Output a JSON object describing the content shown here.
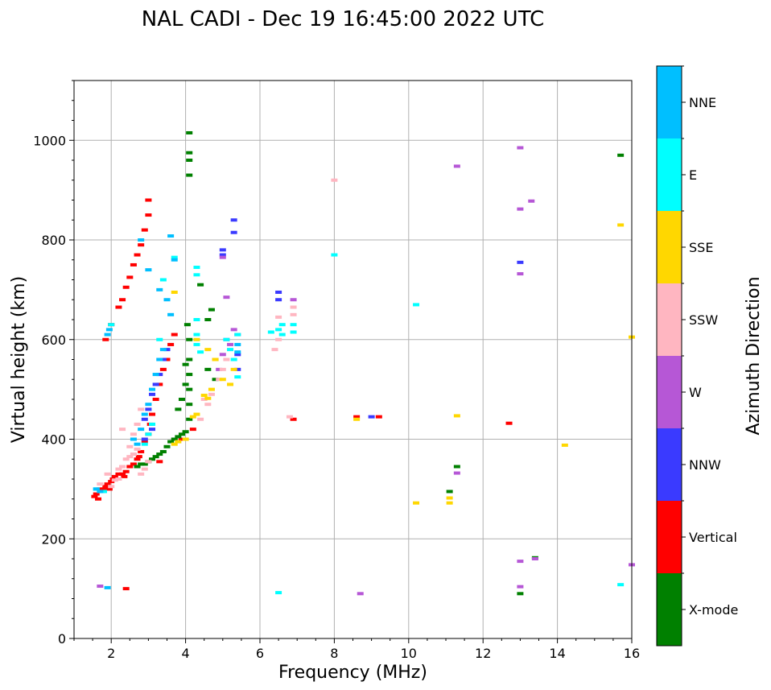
{
  "chart_data": {
    "type": "scatter",
    "title": "NAL CADI - Dec 19 16:45:00 2022 UTC",
    "xlabel": "Frequency (MHz)",
    "ylabel": "Virtual height (km)",
    "xlim": [
      1,
      16
    ],
    "ylim": [
      0,
      1120
    ],
    "xticks": [
      2,
      4,
      6,
      8,
      10,
      12,
      14,
      16
    ],
    "yticks": [
      0,
      200,
      400,
      600,
      800,
      1000
    ],
    "grid": true,
    "colorbar": {
      "title": "Azimuth Direction",
      "categories": [
        {
          "name": "X-mode",
          "color": "#008000"
        },
        {
          "name": "Vertical",
          "color": "#ff0000"
        },
        {
          "name": "NNW",
          "color": "#3a3aff"
        },
        {
          "name": "W",
          "color": "#b657d6"
        },
        {
          "name": "SSW",
          "color": "#ffb6c1"
        },
        {
          "name": "SSE",
          "color": "#ffd700"
        },
        {
          "name": "E",
          "color": "#00ffff"
        },
        {
          "name": "NNE",
          "color": "#00bfff"
        }
      ]
    },
    "series": [
      {
        "name": "Vertical",
        "points": [
          [
            1.55,
            285
          ],
          [
            1.6,
            290
          ],
          [
            1.65,
            280
          ],
          [
            1.7,
            300
          ],
          [
            1.75,
            295
          ],
          [
            1.8,
            300
          ],
          [
            1.85,
            305
          ],
          [
            1.9,
            310
          ],
          [
            1.95,
            300
          ],
          [
            2.0,
            315
          ],
          [
            2.05,
            320
          ],
          [
            2.1,
            325
          ],
          [
            2.2,
            330
          ],
          [
            2.3,
            330
          ],
          [
            2.4,
            335
          ],
          [
            2.5,
            345
          ],
          [
            2.6,
            350
          ],
          [
            2.7,
            360
          ],
          [
            2.8,
            375
          ],
          [
            2.9,
            395
          ],
          [
            3.0,
            410
          ],
          [
            3.05,
            430
          ],
          [
            3.1,
            450
          ],
          [
            3.2,
            480
          ],
          [
            3.3,
            510
          ],
          [
            3.4,
            540
          ],
          [
            3.5,
            560
          ],
          [
            3.6,
            590
          ],
          [
            3.7,
            610
          ],
          [
            1.85,
            600
          ],
          [
            2.0,
            630
          ],
          [
            2.2,
            665
          ],
          [
            2.3,
            680
          ],
          [
            2.4,
            705
          ],
          [
            2.5,
            725
          ],
          [
            2.6,
            750
          ],
          [
            2.7,
            770
          ],
          [
            2.8,
            790
          ],
          [
            2.9,
            820
          ],
          [
            3.0,
            850
          ],
          [
            3.0,
            880
          ],
          [
            6.9,
            440
          ],
          [
            8.6,
            445
          ],
          [
            9.2,
            445
          ],
          [
            12.7,
            432
          ],
          [
            2.4,
            100
          ],
          [
            3.9,
            400
          ],
          [
            4.2,
            420
          ],
          [
            3.3,
            355
          ],
          [
            2.75,
            365
          ],
          [
            2.35,
            325
          ]
        ]
      },
      {
        "name": "X-mode",
        "points": [
          [
            2.7,
            345
          ],
          [
            2.8,
            350
          ],
          [
            2.9,
            350
          ],
          [
            3.0,
            355
          ],
          [
            3.1,
            360
          ],
          [
            3.2,
            365
          ],
          [
            3.3,
            370
          ],
          [
            3.4,
            375
          ],
          [
            3.5,
            385
          ],
          [
            3.6,
            395
          ],
          [
            3.7,
            400
          ],
          [
            3.8,
            405
          ],
          [
            3.9,
            410
          ],
          [
            4.0,
            415
          ],
          [
            4.1,
            440
          ],
          [
            4.1,
            470
          ],
          [
            4.1,
            500
          ],
          [
            4.1,
            530
          ],
          [
            4.1,
            560
          ],
          [
            4.1,
            600
          ],
          [
            4.05,
            630
          ],
          [
            4.6,
            640
          ],
          [
            4.7,
            660
          ],
          [
            4.6,
            540
          ],
          [
            4.8,
            520
          ],
          [
            4.1,
            1015
          ],
          [
            4.1,
            975
          ],
          [
            4.1,
            960
          ],
          [
            4.1,
            930
          ],
          [
            4.4,
            710
          ],
          [
            3.8,
            460
          ],
          [
            3.9,
            480
          ],
          [
            4.0,
            510
          ],
          [
            4.0,
            550
          ],
          [
            11.1,
            295
          ],
          [
            11.3,
            345
          ],
          [
            13.0,
            90
          ],
          [
            13.4,
            162
          ],
          [
            15.7,
            970
          ]
        ]
      },
      {
        "name": "NNW",
        "points": [
          [
            2.9,
            440
          ],
          [
            3.0,
            460
          ],
          [
            3.1,
            490
          ],
          [
            3.2,
            510
          ],
          [
            3.3,
            530
          ],
          [
            3.4,
            560
          ],
          [
            3.5,
            580
          ],
          [
            5.0,
            780
          ],
          [
            5.0,
            770
          ],
          [
            5.3,
            840
          ],
          [
            5.3,
            815
          ],
          [
            5.4,
            570
          ],
          [
            6.5,
            695
          ],
          [
            6.5,
            680
          ],
          [
            9.0,
            445
          ],
          [
            13.0,
            755
          ],
          [
            5.4,
            540
          ],
          [
            2.9,
            400
          ],
          [
            3.1,
            420
          ]
        ]
      },
      {
        "name": "W",
        "points": [
          [
            5.1,
            600
          ],
          [
            5.3,
            620
          ],
          [
            5.4,
            610
          ],
          [
            5.2,
            590
          ],
          [
            5.0,
            570
          ],
          [
            4.8,
            560
          ],
          [
            4.9,
            540
          ],
          [
            5.1,
            685
          ],
          [
            5.0,
            765
          ],
          [
            6.9,
            680
          ],
          [
            11.3,
            948
          ],
          [
            13.0,
            985
          ],
          [
            13.3,
            878
          ],
          [
            13.0,
            862
          ],
          [
            13.0,
            732
          ],
          [
            13.0,
            155
          ],
          [
            13.4,
            160
          ],
          [
            13.0,
            104
          ],
          [
            11.3,
            332
          ],
          [
            8.7,
            90
          ],
          [
            16.0,
            148
          ],
          [
            1.7,
            105
          ]
        ]
      },
      {
        "name": "SSW",
        "points": [
          [
            2.2,
            340
          ],
          [
            2.3,
            345
          ],
          [
            2.4,
            360
          ],
          [
            2.5,
            365
          ],
          [
            2.6,
            370
          ],
          [
            2.7,
            380
          ],
          [
            2.8,
            330
          ],
          [
            2.9,
            340
          ],
          [
            3.0,
            355
          ],
          [
            2.0,
            305
          ],
          [
            2.1,
            318
          ],
          [
            2.2,
            320
          ],
          [
            2.5,
            385
          ],
          [
            2.6,
            410
          ],
          [
            2.7,
            430
          ],
          [
            2.8,
            460
          ],
          [
            4.4,
            440
          ],
          [
            4.5,
            480
          ],
          [
            4.6,
            470
          ],
          [
            4.7,
            490
          ],
          [
            4.9,
            520
          ],
          [
            5.0,
            540
          ],
          [
            5.1,
            560
          ],
          [
            6.4,
            580
          ],
          [
            6.5,
            600
          ],
          [
            6.5,
            645
          ],
          [
            6.9,
            665
          ],
          [
            6.9,
            650
          ],
          [
            6.8,
            445
          ],
          [
            8.0,
            920
          ],
          [
            1.7,
            310
          ],
          [
            1.9,
            330
          ],
          [
            2.3,
            420
          ]
        ]
      },
      {
        "name": "SSE",
        "points": [
          [
            3.7,
            390
          ],
          [
            3.8,
            395
          ],
          [
            4.0,
            400
          ],
          [
            4.2,
            445
          ],
          [
            4.3,
            450
          ],
          [
            4.5,
            488
          ],
          [
            4.6,
            482
          ],
          [
            4.7,
            500
          ],
          [
            4.6,
            580
          ],
          [
            4.8,
            560
          ],
          [
            5.0,
            520
          ],
          [
            5.2,
            510
          ],
          [
            5.3,
            540
          ],
          [
            3.7,
            695
          ],
          [
            10.2,
            272
          ],
          [
            11.1,
            272
          ],
          [
            11.1,
            282
          ],
          [
            11.3,
            447
          ],
          [
            8.6,
            440
          ],
          [
            14.2,
            388
          ],
          [
            15.7,
            830
          ],
          [
            16.0,
            605
          ],
          [
            4.3,
            600
          ]
        ]
      },
      {
        "name": "E",
        "points": [
          [
            2.0,
            630
          ],
          [
            3.3,
            600
          ],
          [
            3.4,
            720
          ],
          [
            3.7,
            765
          ],
          [
            4.3,
            745
          ],
          [
            4.3,
            730
          ],
          [
            4.3,
            640
          ],
          [
            4.3,
            610
          ],
          [
            4.3,
            590
          ],
          [
            4.4,
            575
          ],
          [
            5.1,
            600
          ],
          [
            5.2,
            580
          ],
          [
            5.3,
            560
          ],
          [
            5.4,
            610
          ],
          [
            5.4,
            525
          ],
          [
            6.3,
            615
          ],
          [
            6.5,
            620
          ],
          [
            6.6,
            630
          ],
          [
            6.6,
            610
          ],
          [
            6.9,
            630
          ],
          [
            6.9,
            615
          ],
          [
            8.0,
            770
          ],
          [
            10.2,
            670
          ],
          [
            6.5,
            92
          ],
          [
            15.7,
            108
          ],
          [
            2.9,
            390
          ],
          [
            3.0,
            410
          ],
          [
            3.1,
            430
          ],
          [
            1.6,
            300
          ],
          [
            1.8,
            295
          ]
        ]
      },
      {
        "name": "NNE",
        "points": [
          [
            1.9,
            610
          ],
          [
            1.95,
            620
          ],
          [
            2.8,
            800
          ],
          [
            3.0,
            740
          ],
          [
            3.3,
            700
          ],
          [
            3.5,
            680
          ],
          [
            3.6,
            650
          ],
          [
            3.7,
            760
          ],
          [
            3.6,
            808
          ],
          [
            2.8,
            420
          ],
          [
            2.9,
            450
          ],
          [
            3.0,
            470
          ],
          [
            3.1,
            500
          ],
          [
            3.2,
            530
          ],
          [
            3.3,
            560
          ],
          [
            3.4,
            580
          ],
          [
            2.6,
            400
          ],
          [
            2.7,
            390
          ],
          [
            5.4,
            590
          ],
          [
            5.4,
            575
          ],
          [
            1.9,
            102
          ],
          [
            1.6,
            300
          ],
          [
            1.7,
            295
          ]
        ]
      }
    ]
  }
}
